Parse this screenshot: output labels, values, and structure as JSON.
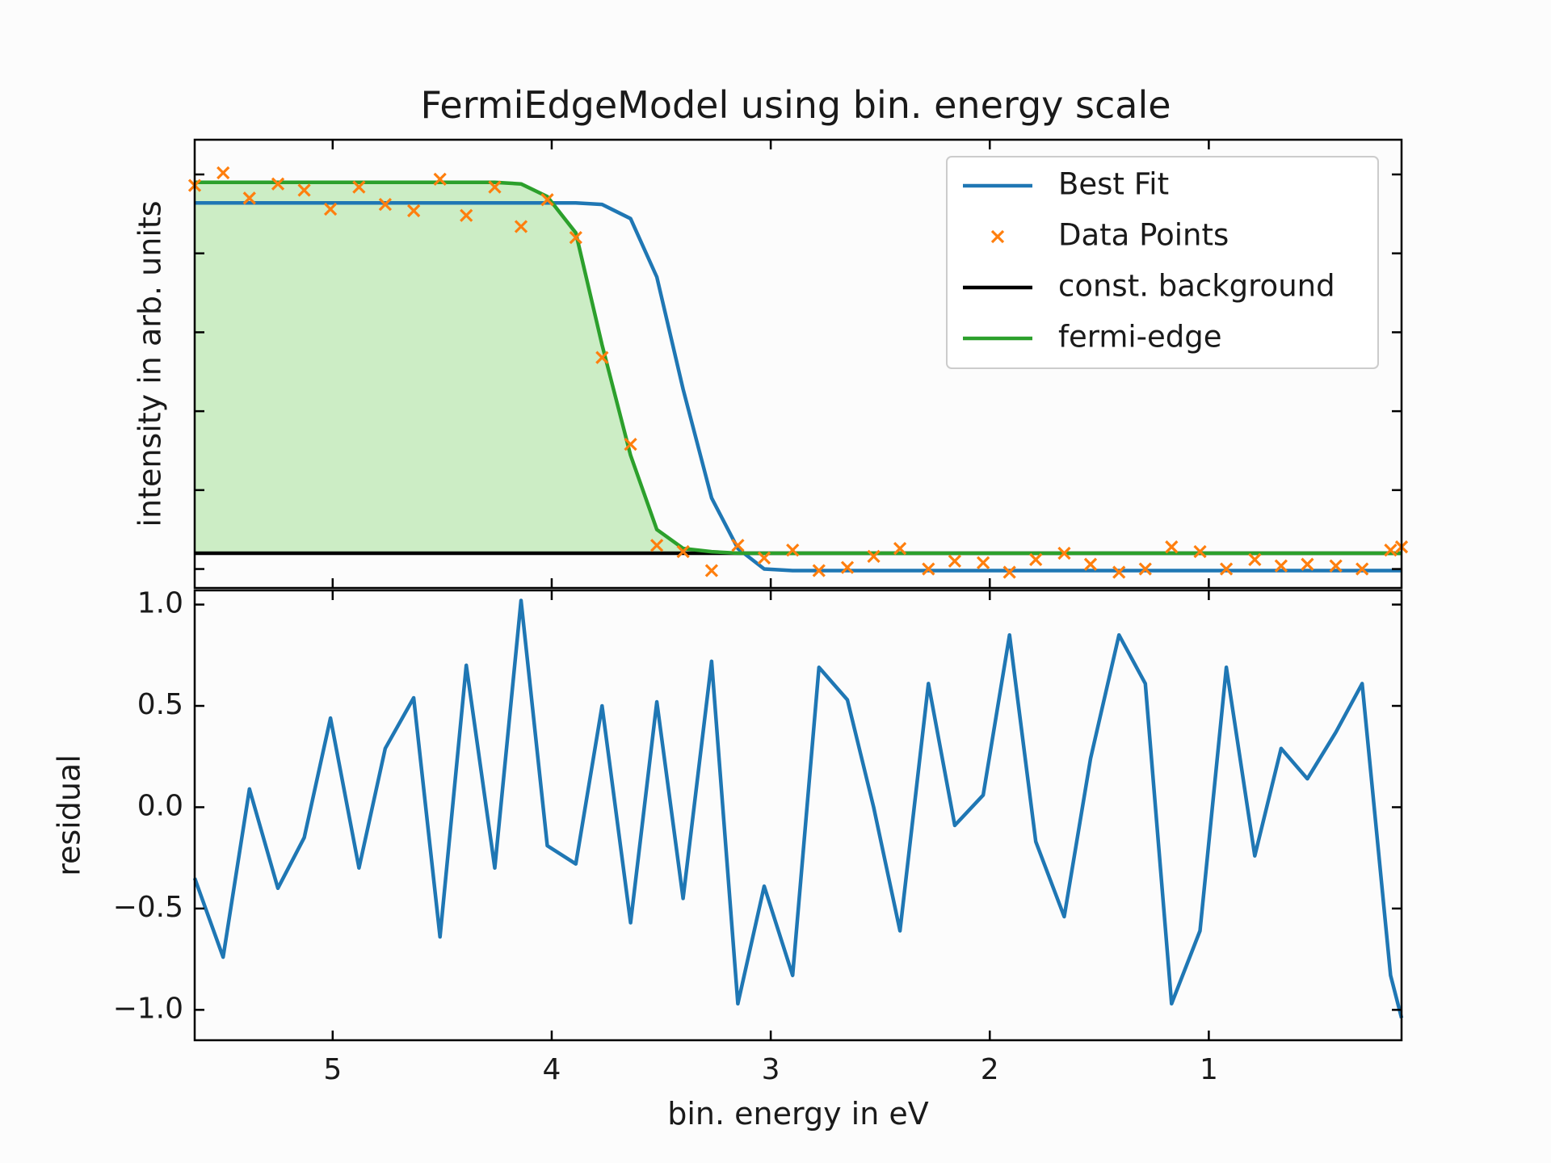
{
  "chart_data": [
    {
      "type": "line",
      "title": "FermiEdgeModel using bin. energy scale",
      "xlabel": "",
      "ylabel": "intensity in arb. units",
      "xlim": [
        5.63,
        0.12
      ],
      "ylim": [
        -0.12,
        2.72
      ],
      "x_reversed": true,
      "y_tick_labels_shown": false,
      "grid": false,
      "legend_position": "top-right",
      "series": [
        {
          "name": "Best Fit",
          "color": "#1f77b4",
          "kind": "line",
          "x": [
            5.63,
            5.5,
            5.38,
            5.25,
            5.13,
            5.01,
            4.88,
            4.76,
            4.63,
            4.51,
            4.39,
            4.26,
            4.14,
            4.02,
            3.89,
            3.77,
            3.64,
            3.52,
            3.4,
            3.27,
            3.15,
            3.03,
            2.9,
            2.78,
            2.65,
            2.53,
            2.41,
            2.28,
            2.16,
            2.03,
            1.91,
            1.79,
            1.66,
            1.54,
            1.41,
            1.29,
            1.17,
            1.04,
            0.92,
            0.79,
            0.67,
            0.55,
            0.42,
            0.3,
            0.17,
            0.12
          ],
          "y": [
            2.32,
            2.32,
            2.32,
            2.32,
            2.32,
            2.32,
            2.32,
            2.32,
            2.32,
            2.32,
            2.32,
            2.32,
            2.32,
            2.32,
            2.32,
            2.31,
            2.22,
            1.85,
            1.14,
            0.45,
            0.13,
            0.0,
            -0.01,
            -0.01,
            -0.01,
            -0.01,
            -0.01,
            -0.01,
            -0.01,
            -0.01,
            -0.01,
            -0.01,
            -0.01,
            -0.01,
            -0.01,
            -0.01,
            -0.01,
            -0.01,
            -0.01,
            -0.01,
            -0.01,
            -0.01,
            -0.01,
            -0.01,
            -0.01,
            -0.01
          ]
        },
        {
          "name": "Data Points",
          "color": "#ff7f0e",
          "kind": "scatter",
          "marker": "x",
          "x": [
            5.63,
            5.5,
            5.38,
            5.25,
            5.13,
            5.01,
            4.88,
            4.76,
            4.63,
            4.51,
            4.39,
            4.26,
            4.14,
            4.02,
            3.89,
            3.77,
            3.64,
            3.52,
            3.4,
            3.27,
            3.15,
            3.03,
            2.9,
            2.78,
            2.65,
            2.53,
            2.41,
            2.28,
            2.16,
            2.03,
            1.91,
            1.79,
            1.66,
            1.54,
            1.41,
            1.29,
            1.17,
            1.04,
            0.92,
            0.79,
            0.67,
            0.55,
            0.42,
            0.3,
            0.17,
            0.12
          ],
          "y": [
            2.43,
            2.51,
            2.35,
            2.44,
            2.4,
            2.28,
            2.42,
            2.31,
            2.27,
            2.47,
            2.24,
            2.42,
            2.17,
            2.34,
            2.1,
            1.34,
            0.79,
            0.15,
            0.11,
            -0.01,
            0.15,
            0.07,
            0.12,
            -0.01,
            0.01,
            0.08,
            0.13,
            0.0,
            0.05,
            0.04,
            -0.02,
            0.06,
            0.1,
            0.03,
            -0.02,
            0.0,
            0.14,
            0.11,
            0.0,
            0.06,
            0.02,
            0.03,
            0.02,
            0.0,
            0.12,
            0.14
          ]
        },
        {
          "name": "const. background",
          "color": "#000000",
          "kind": "line",
          "x": [
            5.63,
            0.12
          ],
          "y": [
            0.1,
            0.1
          ]
        },
        {
          "name": "fermi-edge",
          "color": "#2ca02c",
          "kind": "line",
          "fill": "#ccedc5",
          "x": [
            5.63,
            5.5,
            5.38,
            5.25,
            5.13,
            5.01,
            4.88,
            4.76,
            4.63,
            4.51,
            4.39,
            4.26,
            4.14,
            4.02,
            3.89,
            3.77,
            3.64,
            3.52,
            3.4,
            3.27,
            3.15,
            3.03,
            2.9,
            2.78,
            2.65,
            2.53,
            2.41,
            2.28,
            2.16,
            2.03,
            1.91,
            1.79,
            1.66,
            1.54,
            1.41,
            1.29,
            1.17,
            1.04,
            0.92,
            0.79,
            0.67,
            0.55,
            0.42,
            0.3,
            0.17,
            0.12
          ],
          "y": [
            2.45,
            2.45,
            2.45,
            2.45,
            2.45,
            2.45,
            2.45,
            2.45,
            2.45,
            2.45,
            2.45,
            2.45,
            2.44,
            2.36,
            2.13,
            1.42,
            0.72,
            0.25,
            0.13,
            0.11,
            0.1,
            0.1,
            0.1,
            0.1,
            0.1,
            0.1,
            0.1,
            0.1,
            0.1,
            0.1,
            0.1,
            0.1,
            0.1,
            0.1,
            0.1,
            0.1,
            0.1,
            0.1,
            0.1,
            0.1,
            0.1,
            0.1,
            0.1,
            0.1,
            0.1,
            0.1
          ]
        }
      ]
    },
    {
      "type": "line",
      "title": "",
      "xlabel": "bin. energy in eV",
      "ylabel": "residual",
      "xlim": [
        5.63,
        0.12
      ],
      "ylim": [
        -1.15,
        1.07
      ],
      "x_reversed": true,
      "x_ticks": [
        5,
        4,
        3,
        2,
        1
      ],
      "x_tick_labels": [
        "5",
        "4",
        "3",
        "2",
        "1"
      ],
      "y_ticks": [
        1.0,
        0.5,
        0.0,
        -0.5,
        -1.0
      ],
      "y_tick_labels": [
        "1.0",
        "0.5",
        "0.0",
        "−0.5",
        "−1.0"
      ],
      "grid": false,
      "series": [
        {
          "color": "#1f77b4",
          "x": [
            5.63,
            5.5,
            5.38,
            5.25,
            5.13,
            5.01,
            4.88,
            4.76,
            4.63,
            4.51,
            4.39,
            4.26,
            4.14,
            4.02,
            3.89,
            3.77,
            3.64,
            3.52,
            3.4,
            3.27,
            3.15,
            3.03,
            2.9,
            2.78,
            2.65,
            2.53,
            2.41,
            2.28,
            2.16,
            2.03,
            1.91,
            1.79,
            1.66,
            1.54,
            1.41,
            1.29,
            1.17,
            1.04,
            0.92,
            0.79,
            0.67,
            0.55,
            0.42,
            0.3,
            0.17,
            0.12
          ],
          "y": [
            -0.35,
            -0.74,
            0.09,
            -0.4,
            -0.15,
            0.44,
            -0.3,
            0.29,
            0.54,
            -0.64,
            0.7,
            -0.3,
            1.02,
            -0.19,
            -0.28,
            0.5,
            -0.57,
            0.52,
            -0.45,
            0.72,
            -0.97,
            -0.39,
            -0.83,
            0.69,
            0.53,
            0.0,
            -0.61,
            0.61,
            -0.09,
            0.06,
            0.85,
            -0.17,
            -0.54,
            0.24,
            0.85,
            0.61,
            -0.97,
            -0.61,
            0.69,
            -0.24,
            0.29,
            0.14,
            0.37,
            0.61,
            -0.83,
            -1.04
          ]
        }
      ]
    }
  ]
}
